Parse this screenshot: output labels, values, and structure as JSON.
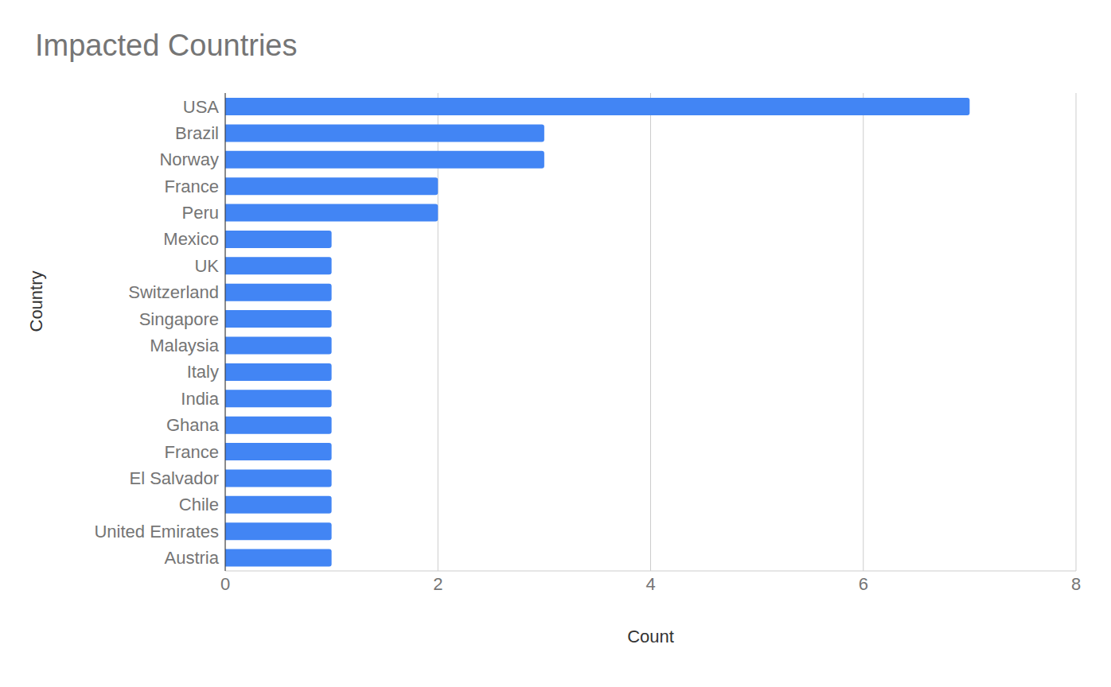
{
  "chart_data": {
    "type": "bar",
    "title": "Impacted Countries",
    "x_label": "Count",
    "y_label": "Country",
    "orientation": "horizontal",
    "categories": [
      "USA",
      "Brazil",
      "Norway",
      "France",
      "Peru",
      "Mexico",
      "UK",
      "Switzerland",
      "Singapore",
      "Malaysia",
      "Italy",
      "India",
      "Ghana",
      "France",
      "El Salvador",
      "Chile",
      "United Emirates",
      "Austria"
    ],
    "values": [
      7,
      3,
      3,
      2,
      2,
      1,
      1,
      1,
      1,
      1,
      1,
      1,
      1,
      1,
      1,
      1,
      1,
      1
    ],
    "color": "#4285f4",
    "xlim": [
      0,
      8
    ],
    "xticks": [
      0,
      2,
      4,
      6,
      8
    ],
    "grid": true
  }
}
